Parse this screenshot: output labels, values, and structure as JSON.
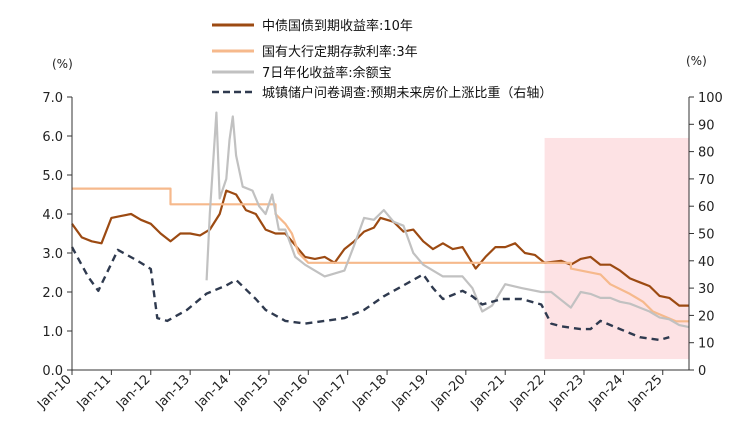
{
  "chart_data": {
    "type": "line",
    "title": "",
    "left_axis": {
      "unit": "(%)",
      "ylim": [
        0,
        7
      ],
      "ticks": [
        "0.0",
        "1.0",
        "2.0",
        "3.0",
        "4.0",
        "5.0",
        "6.0",
        "7.0"
      ]
    },
    "right_axis": {
      "unit": "(%)",
      "ylim": [
        0,
        100
      ],
      "ticks": [
        "0",
        "10",
        "20",
        "30",
        "40",
        "50",
        "60",
        "70",
        "80",
        "90",
        "100"
      ]
    },
    "x_ticks": [
      "Jan-10",
      "Jan-11",
      "Jan-12",
      "Jan-13",
      "Jan-14",
      "Jan-15",
      "Jan-16",
      "Jan-17",
      "Jan-18",
      "Jan-19",
      "Jan-20",
      "Jan-21",
      "Jan-22",
      "Jan-23",
      "Jan-24",
      "Jan-25"
    ],
    "xlim": [
      "2010-01",
      "2025-09"
    ],
    "highlight": {
      "from": "2022-01",
      "to": "2025-09",
      "color": "#fde2e4"
    },
    "legend_placement": "top-center",
    "series": [
      {
        "name": "中债国债到期收益率:10年",
        "axis": "left",
        "color": "#9c4a12",
        "style": "solid",
        "points": [
          [
            "2010-01",
            3.75
          ],
          [
            "2010-04",
            3.4
          ],
          [
            "2010-07",
            3.3
          ],
          [
            "2010-10",
            3.25
          ],
          [
            "2011-01",
            3.9
          ],
          [
            "2011-04",
            3.95
          ],
          [
            "2011-07",
            4.0
          ],
          [
            "2011-10",
            3.85
          ],
          [
            "2012-01",
            3.75
          ],
          [
            "2012-04",
            3.5
          ],
          [
            "2012-07",
            3.3
          ],
          [
            "2012-10",
            3.5
          ],
          [
            "2013-01",
            3.5
          ],
          [
            "2013-04",
            3.45
          ],
          [
            "2013-07",
            3.6
          ],
          [
            "2013-10",
            4.0
          ],
          [
            "2013-12",
            4.6
          ],
          [
            "2014-03",
            4.5
          ],
          [
            "2014-06",
            4.1
          ],
          [
            "2014-09",
            4.0
          ],
          [
            "2014-12",
            3.6
          ],
          [
            "2015-03",
            3.5
          ],
          [
            "2015-06",
            3.5
          ],
          [
            "2015-09",
            3.2
          ],
          [
            "2015-12",
            2.9
          ],
          [
            "2016-03",
            2.85
          ],
          [
            "2016-06",
            2.9
          ],
          [
            "2016-09",
            2.75
          ],
          [
            "2016-12",
            3.1
          ],
          [
            "2017-03",
            3.3
          ],
          [
            "2017-06",
            3.55
          ],
          [
            "2017-09",
            3.65
          ],
          [
            "2017-11",
            3.9
          ],
          [
            "2018-03",
            3.8
          ],
          [
            "2018-06",
            3.55
          ],
          [
            "2018-09",
            3.6
          ],
          [
            "2018-12",
            3.3
          ],
          [
            "2019-03",
            3.1
          ],
          [
            "2019-06",
            3.25
          ],
          [
            "2019-09",
            3.1
          ],
          [
            "2019-12",
            3.15
          ],
          [
            "2020-04",
            2.6
          ],
          [
            "2020-07",
            2.9
          ],
          [
            "2020-10",
            3.15
          ],
          [
            "2021-01",
            3.15
          ],
          [
            "2021-04",
            3.25
          ],
          [
            "2021-07",
            3.0
          ],
          [
            "2021-10",
            2.95
          ],
          [
            "2022-01",
            2.75
          ],
          [
            "2022-06",
            2.8
          ],
          [
            "2022-09",
            2.7
          ],
          [
            "2022-12",
            2.85
          ],
          [
            "2023-03",
            2.9
          ],
          [
            "2023-06",
            2.7
          ],
          [
            "2023-09",
            2.7
          ],
          [
            "2023-12",
            2.55
          ],
          [
            "2024-03",
            2.35
          ],
          [
            "2024-06",
            2.25
          ],
          [
            "2024-09",
            2.15
          ],
          [
            "2024-12",
            1.9
          ],
          [
            "2025-03",
            1.85
          ],
          [
            "2025-06",
            1.65
          ],
          [
            "2025-09",
            1.65
          ]
        ]
      },
      {
        "name": "国有大行定期存款利率:3年",
        "axis": "left",
        "color": "#f6b98c",
        "style": "solid",
        "points": [
          [
            "2010-01",
            4.65
          ],
          [
            "2012-07",
            4.65
          ],
          [
            "2012-07",
            4.25
          ],
          [
            "2015-03",
            4.25
          ],
          [
            "2015-03",
            4.0
          ],
          [
            "2015-06",
            3.75
          ],
          [
            "2015-08",
            3.5
          ],
          [
            "2015-10",
            3.0
          ],
          [
            "2016-01",
            2.75
          ],
          [
            "2022-09",
            2.75
          ],
          [
            "2022-09",
            2.6
          ],
          [
            "2023-06",
            2.45
          ],
          [
            "2023-09",
            2.2
          ],
          [
            "2024-03",
            1.95
          ],
          [
            "2024-07",
            1.75
          ],
          [
            "2024-10",
            1.5
          ],
          [
            "2025-05",
            1.25
          ],
          [
            "2025-09",
            1.25
          ]
        ]
      },
      {
        "name": "7日年化收益率:余额宝",
        "axis": "left",
        "color": "#c1c1c1",
        "style": "solid",
        "points": [
          [
            "2013-06",
            2.3
          ],
          [
            "2013-07",
            4.0
          ],
          [
            "2013-09",
            6.6
          ],
          [
            "2013-10",
            4.4
          ],
          [
            "2013-12",
            4.9
          ],
          [
            "2014-01",
            5.9
          ],
          [
            "2014-02",
            6.5
          ],
          [
            "2014-03",
            5.5
          ],
          [
            "2014-05",
            4.7
          ],
          [
            "2014-08",
            4.6
          ],
          [
            "2014-10",
            4.2
          ],
          [
            "2014-12",
            4.0
          ],
          [
            "2015-02",
            4.5
          ],
          [
            "2015-04",
            3.6
          ],
          [
            "2015-06",
            3.6
          ],
          [
            "2015-09",
            2.9
          ],
          [
            "2015-12",
            2.7
          ],
          [
            "2016-06",
            2.4
          ],
          [
            "2016-12",
            2.55
          ],
          [
            "2017-03",
            3.2
          ],
          [
            "2017-06",
            3.9
          ],
          [
            "2017-09",
            3.85
          ],
          [
            "2017-12",
            4.1
          ],
          [
            "2018-03",
            3.8
          ],
          [
            "2018-06",
            3.7
          ],
          [
            "2018-09",
            3.0
          ],
          [
            "2018-12",
            2.7
          ],
          [
            "2019-06",
            2.4
          ],
          [
            "2019-12",
            2.4
          ],
          [
            "2020-03",
            2.1
          ],
          [
            "2020-06",
            1.5
          ],
          [
            "2020-09",
            1.65
          ],
          [
            "2021-01",
            2.2
          ],
          [
            "2021-06",
            2.1
          ],
          [
            "2021-12",
            2.0
          ],
          [
            "2022-03",
            2.0
          ],
          [
            "2022-06",
            1.8
          ],
          [
            "2022-09",
            1.6
          ],
          [
            "2022-12",
            2.0
          ],
          [
            "2023-03",
            1.95
          ],
          [
            "2023-06",
            1.85
          ],
          [
            "2023-09",
            1.85
          ],
          [
            "2023-12",
            1.75
          ],
          [
            "2024-03",
            1.7
          ],
          [
            "2024-06",
            1.6
          ],
          [
            "2024-09",
            1.5
          ],
          [
            "2024-12",
            1.35
          ],
          [
            "2025-03",
            1.3
          ],
          [
            "2025-06",
            1.15
          ],
          [
            "2025-09",
            1.1
          ]
        ]
      },
      {
        "name": "城镇储户问卷调查:预期未来房价上涨比重（右轴）",
        "axis": "right",
        "color": "#2f3a4f",
        "style": "dashed",
        "points": [
          [
            "2010-01",
            45
          ],
          [
            "2010-06",
            34
          ],
          [
            "2010-09",
            29
          ],
          [
            "2011-03",
            44
          ],
          [
            "2011-09",
            40
          ],
          [
            "2012-01",
            37
          ],
          [
            "2012-03",
            19
          ],
          [
            "2012-06",
            18
          ],
          [
            "2012-12",
            22
          ],
          [
            "2013-06",
            28
          ],
          [
            "2013-12",
            31
          ],
          [
            "2014-03",
            33
          ],
          [
            "2014-09",
            26
          ],
          [
            "2014-12",
            22
          ],
          [
            "2015-06",
            18
          ],
          [
            "2015-12",
            17
          ],
          [
            "2016-06",
            18
          ],
          [
            "2016-12",
            19
          ],
          [
            "2017-06",
            22
          ],
          [
            "2017-12",
            27
          ],
          [
            "2018-06",
            31
          ],
          [
            "2018-12",
            35
          ],
          [
            "2019-03",
            30
          ],
          [
            "2019-06",
            26
          ],
          [
            "2019-12",
            29
          ],
          [
            "2020-03",
            27
          ],
          [
            "2020-06",
            24
          ],
          [
            "2020-12",
            26
          ],
          [
            "2021-06",
            26
          ],
          [
            "2021-12",
            24
          ],
          [
            "2022-03",
            17
          ],
          [
            "2022-06",
            16
          ],
          [
            "2022-12",
            15
          ],
          [
            "2023-03",
            15
          ],
          [
            "2023-06",
            18
          ],
          [
            "2023-12",
            15
          ],
          [
            "2024-06",
            12
          ],
          [
            "2024-12",
            11
          ],
          [
            "2025-03",
            12
          ]
        ]
      }
    ]
  }
}
